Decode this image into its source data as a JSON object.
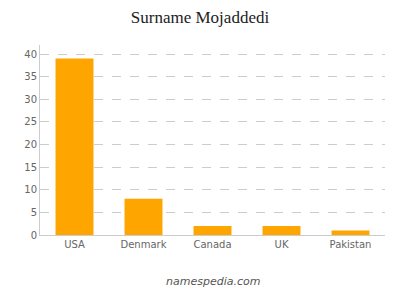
{
  "chart_data": {
    "type": "bar",
    "title": "Surname Mojaddedi",
    "categories": [
      "USA",
      "Denmark",
      "Canada",
      "UK",
      "Pakistan"
    ],
    "values": [
      39,
      8,
      2,
      2,
      1
    ],
    "color": "#FFA500",
    "ylim": [
      0,
      42
    ],
    "yticks": [
      0,
      5,
      10,
      15,
      20,
      25,
      30,
      35,
      40
    ],
    "grid": true,
    "annotations": [
      "namespedia.com"
    ]
  }
}
